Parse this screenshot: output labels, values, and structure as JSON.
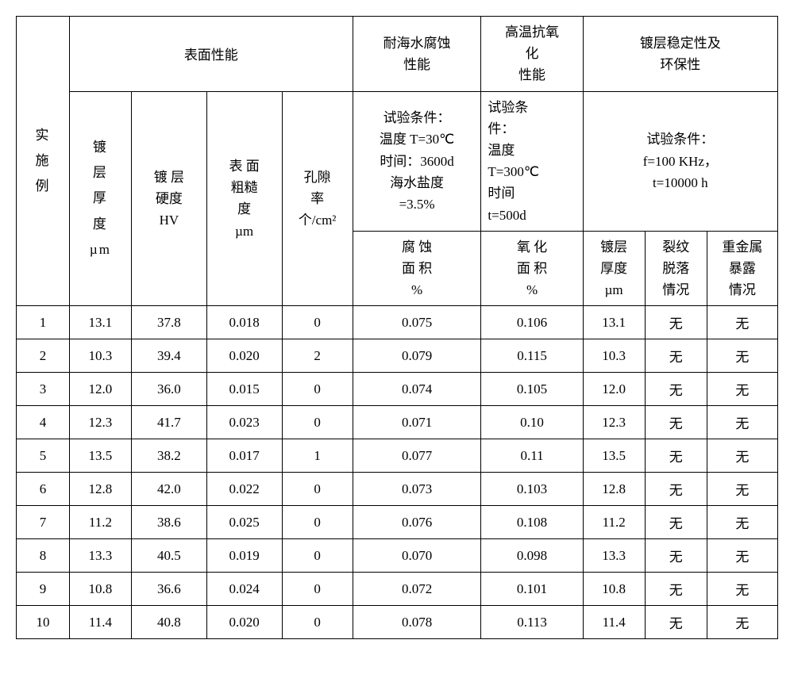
{
  "headers": {
    "col0": "实\n施\n例",
    "group1": "表面性能",
    "group2": "耐海水腐蚀\n性能",
    "group3": "高温抗氧\n化\n性能",
    "group4": "镀层稳定性及\n环保性",
    "sub1": "镀\n层\n厚\n度\nµm",
    "sub2_1": "镀 层",
    "sub2_2": "硬度",
    "sub2_3": "HV",
    "sub3_1": "表 面",
    "sub3_2": "粗糙",
    "sub3_3": "度",
    "sub3_4": "µm",
    "sub4_1": "孔隙",
    "sub4_2": "率",
    "sub4_3": "个/cm²",
    "cond1": "试验条件：\n温度 T=30℃\n时间：3600d\n海水盐度\n=3.5%",
    "cond2": "试验条\n件：\n温度\nT=300℃\n时间\nt=500d",
    "cond3": "试验条件：\nf=100 KHz，\nt=10000 h",
    "res1_1": "腐 蚀",
    "res1_2": "面 积",
    "res1_3": "%",
    "res2_1": "氧 化",
    "res2_2": "面 积",
    "res2_3": "%",
    "res3": "镀层\n厚度\nµm",
    "res4": "裂纹\n脱落\n情况",
    "res5": "重金属\n暴露\n情况"
  },
  "rows": [
    {
      "n": "1",
      "a": "13.1",
      "b": "37.8",
      "c": "0.018",
      "d": "0",
      "e": "0.075",
      "f": "0.106",
      "g": "13.1",
      "h": "无",
      "i": "无"
    },
    {
      "n": "2",
      "a": "10.3",
      "b": "39.4",
      "c": "0.020",
      "d": "2",
      "e": "0.079",
      "f": "0.115",
      "g": "10.3",
      "h": "无",
      "i": "无"
    },
    {
      "n": "3",
      "a": "12.0",
      "b": "36.0",
      "c": "0.015",
      "d": "0",
      "e": "0.074",
      "f": "0.105",
      "g": "12.0",
      "h": "无",
      "i": "无"
    },
    {
      "n": "4",
      "a": "12.3",
      "b": "41.7",
      "c": "0.023",
      "d": "0",
      "e": "0.071",
      "f": "0.10",
      "g": "12.3",
      "h": "无",
      "i": "无"
    },
    {
      "n": "5",
      "a": "13.5",
      "b": "38.2",
      "c": "0.017",
      "d": "1",
      "e": "0.077",
      "f": "0.11",
      "g": "13.5",
      "h": "无",
      "i": "无"
    },
    {
      "n": "6",
      "a": "12.8",
      "b": "42.0",
      "c": "0.022",
      "d": "0",
      "e": "0.073",
      "f": "0.103",
      "g": "12.8",
      "h": "无",
      "i": "无"
    },
    {
      "n": "7",
      "a": "11.2",
      "b": "38.6",
      "c": "0.025",
      "d": "0",
      "e": "0.076",
      "f": "0.108",
      "g": "11.2",
      "h": "无",
      "i": "无"
    },
    {
      "n": "8",
      "a": "13.3",
      "b": "40.5",
      "c": "0.019",
      "d": "0",
      "e": "0.070",
      "f": "0.098",
      "g": "13.3",
      "h": "无",
      "i": "无"
    },
    {
      "n": "9",
      "a": "10.8",
      "b": "36.6",
      "c": "0.024",
      "d": "0",
      "e": "0.072",
      "f": "0.101",
      "g": "10.8",
      "h": "无",
      "i": "无"
    },
    {
      "n": "10",
      "a": "11.4",
      "b": "40.8",
      "c": "0.020",
      "d": "0",
      "e": "0.078",
      "f": "0.113",
      "g": "11.4",
      "h": "无",
      "i": "无"
    }
  ],
  "style": {
    "border_color": "#000000",
    "bg_color": "#ffffff",
    "font_size": 17,
    "font_family": "SimSun"
  }
}
